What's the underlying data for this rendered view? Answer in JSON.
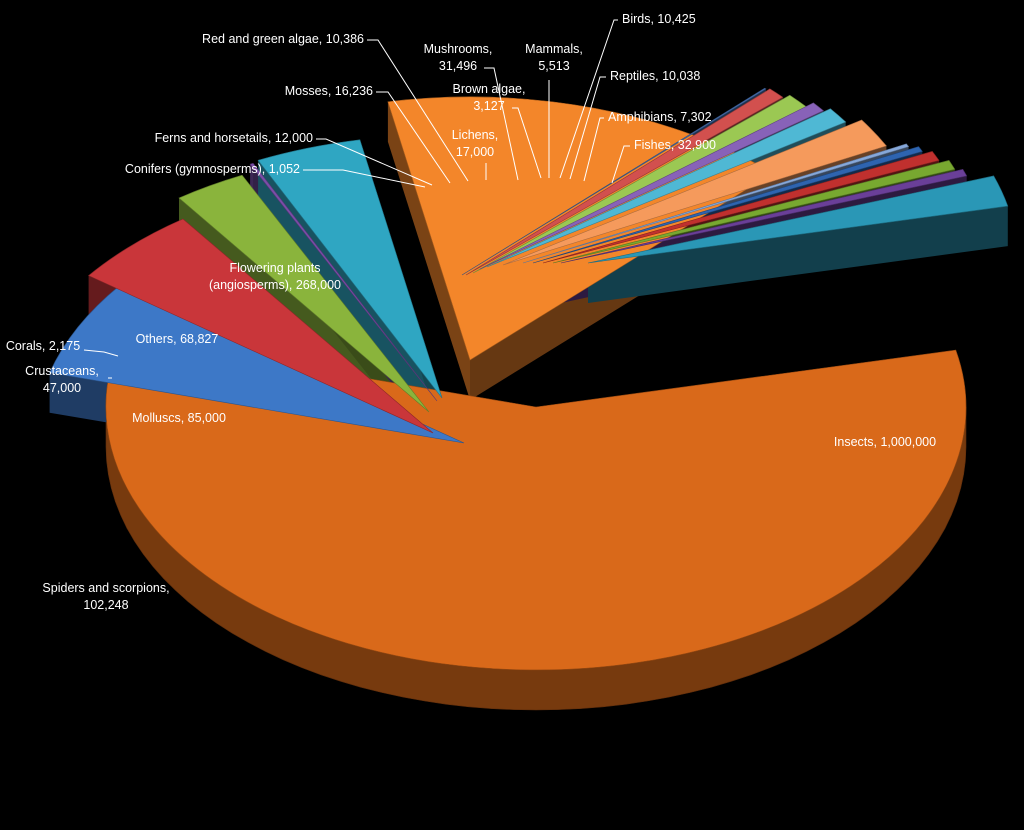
{
  "chart_data": {
    "type": "pie",
    "title": "",
    "style": "3d-exploded",
    "slices": [
      {
        "label": "Insects, 1,000,000",
        "category": "Insects",
        "value": 1000000,
        "color": "#d9691a"
      },
      {
        "label": "Spiders and scorpions, 102,248",
        "category": "Spiders and scorpions",
        "value": 102248,
        "color": "#3d78c7"
      },
      {
        "label": "Molluscs, 85,000",
        "category": "Molluscs",
        "value": 85000,
        "color": "#c9363a"
      },
      {
        "label": "Crustaceans, 47,000",
        "category": "Crustaceans",
        "value": 47000,
        "color": "#8ab43c"
      },
      {
        "label": "Corals, 2,175",
        "category": "Corals",
        "value": 2175,
        "color": "#7a4ea8"
      },
      {
        "label": "Others, 68,827",
        "category": "Others",
        "value": 68827,
        "color": "#2fa6c2"
      },
      {
        "label": "Flowering plants (angiosperms), 268,000",
        "category": "Flowering plants (angiosperms)",
        "value": 268000,
        "color": "#f3862a"
      },
      {
        "label": "Conifers (gymnosperms), 1,052",
        "category": "Conifers (gymnosperms)",
        "value": 1052,
        "color": "#4a74b6"
      },
      {
        "label": "Ferns and horsetails, 12,000",
        "category": "Ferns and horsetails",
        "value": 12000,
        "color": "#d2504e"
      },
      {
        "label": "Mosses, 16,236",
        "category": "Mosses",
        "value": 16236,
        "color": "#9bc853"
      },
      {
        "label": "Red and green algae, 10,386",
        "category": "Red and green algae",
        "value": 10386,
        "color": "#8862b8"
      },
      {
        "label": "Lichens, 17,000",
        "category": "Lichens",
        "value": 17000,
        "color": "#4fb8d4"
      },
      {
        "label": "Mushrooms, 31,496",
        "category": "Mushrooms",
        "value": 31496,
        "color": "#f59a5c"
      },
      {
        "label": "Brown algae, 3,127",
        "category": "Brown algae",
        "value": 3127,
        "color": "#86a8da"
      },
      {
        "label": "Mammals, 5,513",
        "category": "Mammals",
        "value": 5513,
        "color": "#2e64b0"
      },
      {
        "label": "Birds, 10,425",
        "category": "Birds",
        "value": 10425,
        "color": "#c0302e"
      },
      {
        "label": "Reptiles, 10,038",
        "category": "Reptiles",
        "value": 10038,
        "color": "#78a830"
      },
      {
        "label": "Amphibians, 7,302",
        "category": "Amphibians",
        "value": 7302,
        "color": "#6a3f98"
      },
      {
        "label": "Fishes, 32,900",
        "category": "Fishes",
        "value": 32900,
        "color": "#2a97b6"
      }
    ]
  }
}
